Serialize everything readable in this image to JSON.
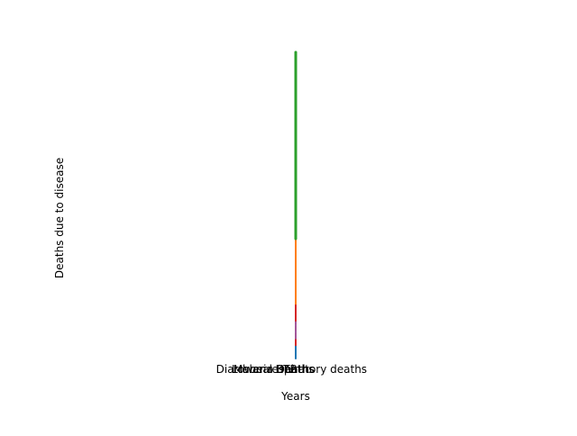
{
  "chart_data": {
    "type": "line",
    "title": "",
    "xlabel": "Years",
    "ylabel": "Deaths due to disease",
    "categories": [
      "Diarrhoeal Deaths",
      "Malaria Deaths",
      "HIV",
      "TB",
      "Lower respiratory deaths"
    ],
    "grid": false,
    "axes_visible": false,
    "series": [
      {
        "color": "#1f77b4",
        "linewidth": 2,
        "x_index": 2,
        "y_segments": [
          [
            -0.1,
            0.05
          ],
          [
            0.05,
            0.35
          ],
          [
            0.35,
            0.55
          ]
        ]
      },
      {
        "color": "#ff7f0e",
        "linewidth": 2,
        "x_index": 2,
        "y_segments": [
          [
            0.35,
            0.8
          ],
          [
            0.8,
            1.4
          ],
          [
            1.4,
            1.7
          ]
        ]
      },
      {
        "color": "#2ca02c",
        "linewidth": 3,
        "x_index": 2,
        "y_segments": [
          [
            1.7,
            2.6
          ],
          [
            2.6,
            3.5
          ],
          [
            3.5,
            4.5
          ]
        ]
      },
      {
        "color": "#d62728",
        "linewidth": 2,
        "x_index": 2,
        "y_segments": [
          [
            0.1,
            0.25
          ],
          [
            0.25,
            0.5
          ],
          [
            0.5,
            0.7
          ]
        ]
      },
      {
        "color": "#9467bd",
        "linewidth": 1.5,
        "x_index": 2,
        "y_segments": [
          [
            0.2,
            0.3
          ],
          [
            0.3,
            0.4
          ],
          [
            0.4,
            0.45
          ]
        ]
      }
    ],
    "ylim": [
      -0.1,
      4.5
    ]
  }
}
